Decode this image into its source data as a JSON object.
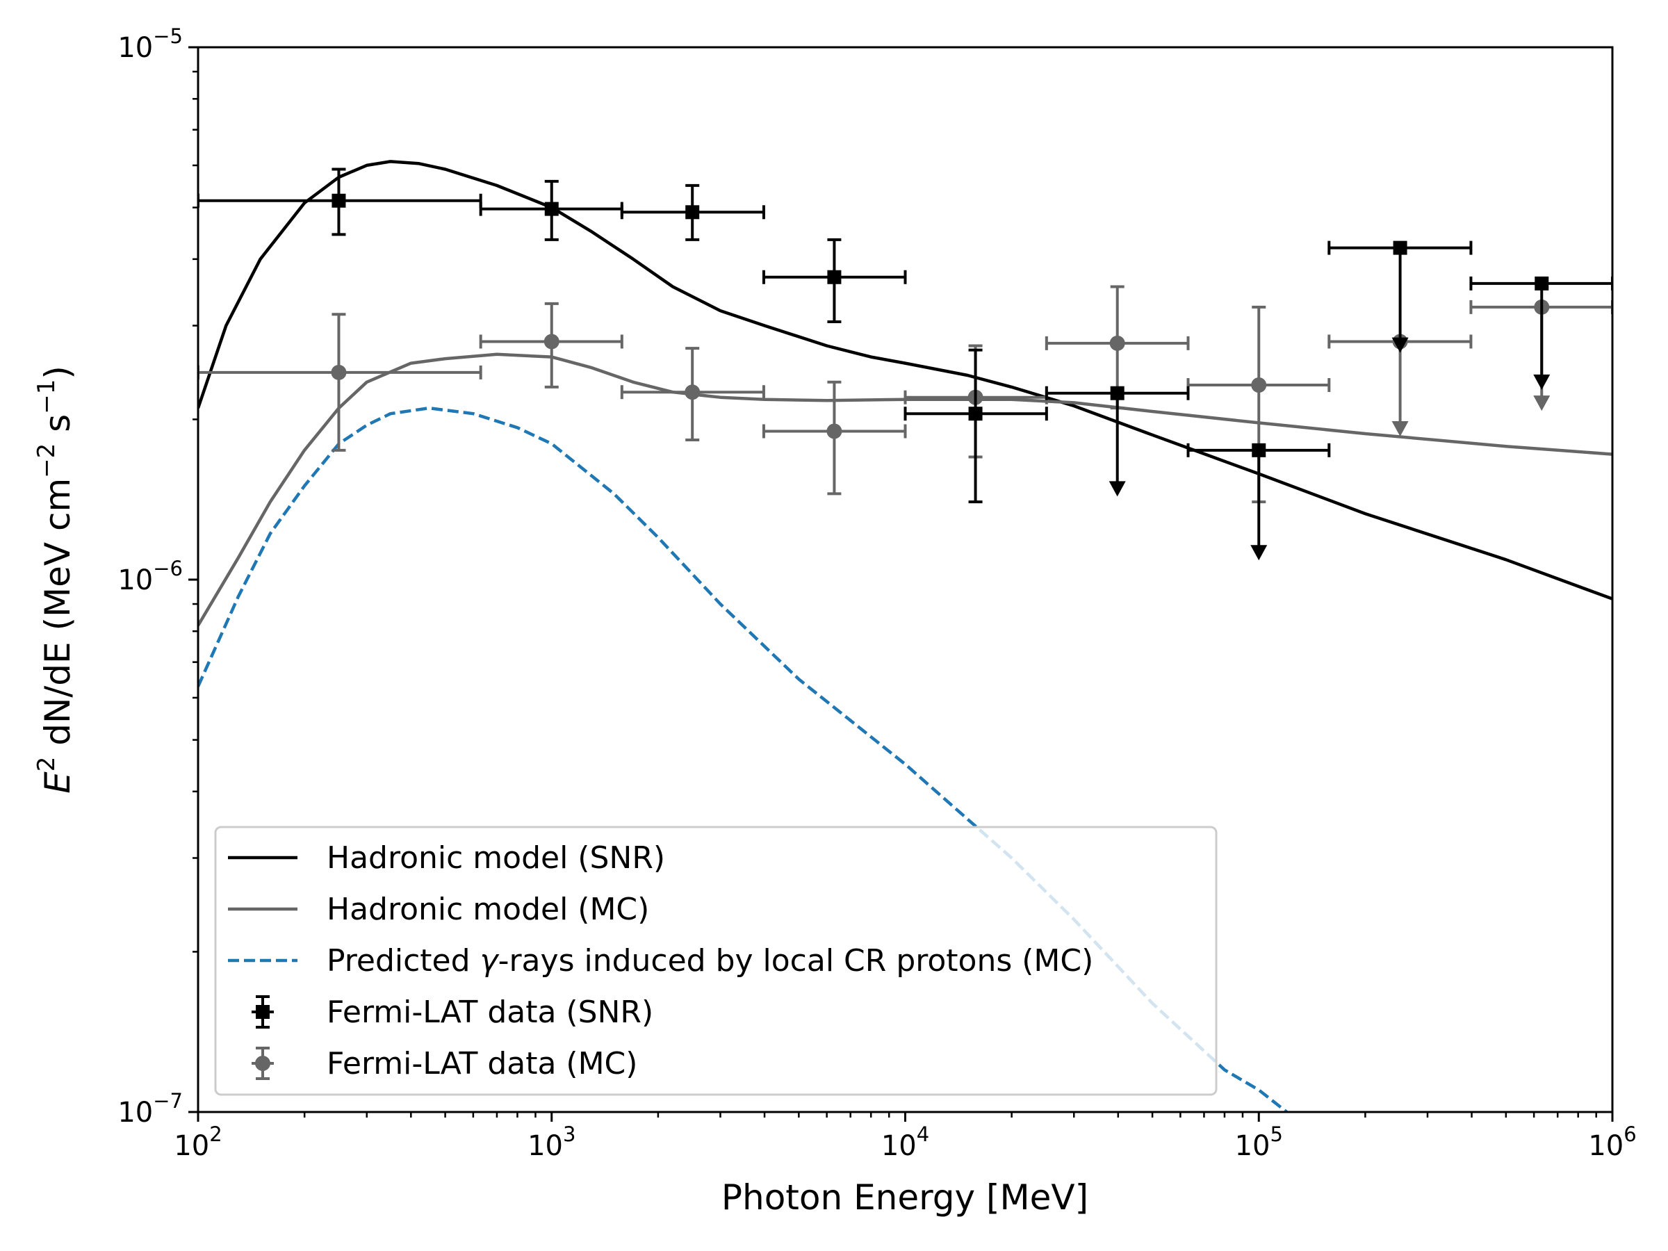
{
  "chart_data": {
    "type": "line",
    "xscale": "log",
    "yscale": "log",
    "xlim": [
      100,
      1000000
    ],
    "ylim": [
      1e-07,
      1e-05
    ],
    "xlabel": "Photon Energy [MeV]",
    "ylabel": {
      "base": "E",
      "base_sup": "2",
      "mid": " dN/dE (MeV cm",
      "sup1": "−2",
      "mid2": " s",
      "sup2": "−1",
      "end": ")"
    },
    "xticks": [
      {
        "value": 100,
        "base": "10",
        "exp": "2"
      },
      {
        "value": 1000,
        "base": "10",
        "exp": "3"
      },
      {
        "value": 10000,
        "base": "10",
        "exp": "4"
      },
      {
        "value": 100000,
        "base": "10",
        "exp": "5"
      },
      {
        "value": 1000000,
        "base": "10",
        "exp": "6"
      }
    ],
    "yticks": [
      {
        "value": 1e-07,
        "base": "10",
        "exp": "−7"
      },
      {
        "value": 1e-06,
        "base": "10",
        "exp": "−6"
      },
      {
        "value": 1e-05,
        "base": "10",
        "exp": "−5"
      }
    ],
    "series": [
      {
        "name": "Hadronic model (SNR)",
        "color": "#000000",
        "style": "solid",
        "x": [
          100,
          120,
          150,
          200,
          250,
          300,
          350,
          420,
          500,
          700,
          1000,
          1300,
          1700,
          2200,
          3000,
          4000,
          6000,
          8000,
          10000,
          15000,
          20000,
          30000,
          50000,
          100000,
          200000,
          500000,
          1000000
        ],
        "y": [
          2.1e-06,
          3e-06,
          4e-06,
          5.1e-06,
          5.7e-06,
          6e-06,
          6.1e-06,
          6.05e-06,
          5.9e-06,
          5.5e-06,
          5e-06,
          4.5e-06,
          4e-06,
          3.55e-06,
          3.2e-06,
          3e-06,
          2.75e-06,
          2.62e-06,
          2.55e-06,
          2.42e-06,
          2.3e-06,
          2.12e-06,
          1.87e-06,
          1.58e-06,
          1.33e-06,
          1.09e-06,
          9.2e-07
        ]
      },
      {
        "name": "Hadronic model (MC)",
        "color": "#666666",
        "style": "solid",
        "x": [
          100,
          130,
          160,
          200,
          250,
          300,
          400,
          500,
          700,
          1000,
          1300,
          1700,
          2200,
          3000,
          4000,
          6000,
          10000,
          20000,
          30000,
          50000,
          100000,
          200000,
          500000,
          1000000
        ],
        "y": [
          8.2e-07,
          1.1e-06,
          1.4e-06,
          1.75e-06,
          2.1e-06,
          2.35e-06,
          2.55e-06,
          2.6e-06,
          2.65e-06,
          2.62e-06,
          2.5e-06,
          2.35e-06,
          2.25e-06,
          2.2e-06,
          2.18e-06,
          2.17e-06,
          2.18e-06,
          2.18e-06,
          2.15e-06,
          2.07e-06,
          1.97e-06,
          1.88e-06,
          1.78e-06,
          1.72e-06
        ]
      },
      {
        "name": "Predicted γ-rays induced by local CR protons (MC)",
        "color": "#1f77b4",
        "style": "dashed",
        "x": [
          100,
          130,
          160,
          200,
          250,
          300,
          350,
          450,
          600,
          800,
          1000,
          1500,
          2000,
          3000,
          5000,
          10000,
          20000,
          30000,
          50000,
          80000,
          100000,
          120000
        ],
        "y": [
          6.3e-07,
          9.3e-07,
          1.22e-06,
          1.5e-06,
          1.8e-06,
          1.95e-06,
          2.05e-06,
          2.1e-06,
          2.05e-06,
          1.93e-06,
          1.8e-06,
          1.45e-06,
          1.2e-06,
          9e-07,
          6.5e-07,
          4.5e-07,
          3e-07,
          2.3e-07,
          1.6e-07,
          1.2e-07,
          1.1e-07,
          1e-07
        ]
      }
    ],
    "fermi_snr": {
      "name": "Fermi-LAT data (SNR)",
      "color": "#000000",
      "marker": "square",
      "points": [
        {
          "x": 250,
          "xlo": 100,
          "xhi": 630,
          "y": 5.15e-06,
          "ylo": 4.45e-06,
          "yhi": 5.9e-06,
          "ul": false
        },
        {
          "x": 1000,
          "xlo": 630,
          "xhi": 1580,
          "y": 4.97e-06,
          "ylo": 4.35e-06,
          "yhi": 5.6e-06,
          "ul": false
        },
        {
          "x": 2500,
          "xlo": 1580,
          "xhi": 3980,
          "y": 4.9e-06,
          "ylo": 4.35e-06,
          "yhi": 5.5e-06,
          "ul": false
        },
        {
          "x": 6300,
          "xlo": 3980,
          "xhi": 10000,
          "y": 3.7e-06,
          "ylo": 3.05e-06,
          "yhi": 4.35e-06,
          "ul": false
        },
        {
          "x": 15800,
          "xlo": 10000,
          "xhi": 25100,
          "y": 2.05e-06,
          "ylo": 1.4e-06,
          "yhi": 2.7e-06,
          "ul": false
        },
        {
          "x": 39800,
          "xlo": 25100,
          "xhi": 63100,
          "y": 2.24e-06,
          "ylo": 1.45e-06,
          "yhi": 2.24e-06,
          "ul": true
        },
        {
          "x": 100000,
          "xlo": 63100,
          "xhi": 158000,
          "y": 1.75e-06,
          "ylo": 1.1e-06,
          "yhi": 1.75e-06,
          "ul": true
        },
        {
          "x": 251000,
          "xlo": 158000,
          "xhi": 398000,
          "y": 4.2e-06,
          "ylo": 2.7e-06,
          "yhi": 4.2e-06,
          "ul": true
        },
        {
          "x": 631000,
          "xlo": 398000,
          "xhi": 1000000,
          "y": 3.6e-06,
          "ylo": 2.3e-06,
          "yhi": 3.6e-06,
          "ul": true
        }
      ]
    },
    "fermi_mc": {
      "name": "Fermi-LAT data (MC)",
      "color": "#666666",
      "marker": "circle",
      "points": [
        {
          "x": 250,
          "xlo": 100,
          "xhi": 630,
          "y": 2.45e-06,
          "ylo": 1.75e-06,
          "yhi": 3.15e-06,
          "ul": false
        },
        {
          "x": 1000,
          "xlo": 630,
          "xhi": 1580,
          "y": 2.8e-06,
          "ylo": 2.3e-06,
          "yhi": 3.3e-06,
          "ul": false
        },
        {
          "x": 2500,
          "xlo": 1580,
          "xhi": 3980,
          "y": 2.25e-06,
          "ylo": 1.83e-06,
          "yhi": 2.72e-06,
          "ul": false
        },
        {
          "x": 6300,
          "xlo": 3980,
          "xhi": 10000,
          "y": 1.9e-06,
          "ylo": 1.45e-06,
          "yhi": 2.35e-06,
          "ul": false
        },
        {
          "x": 15800,
          "xlo": 10000,
          "xhi": 25100,
          "y": 2.2e-06,
          "ylo": 1.7e-06,
          "yhi": 2.75e-06,
          "ul": false
        },
        {
          "x": 39800,
          "xlo": 25100,
          "xhi": 63100,
          "y": 2.78e-06,
          "ylo": 2.1e-06,
          "yhi": 3.55e-06,
          "ul": false
        },
        {
          "x": 100000,
          "xlo": 63100,
          "xhi": 158000,
          "y": 2.32e-06,
          "ylo": 1.4e-06,
          "yhi": 3.25e-06,
          "ul": false
        },
        {
          "x": 251000,
          "xlo": 158000,
          "xhi": 398000,
          "y": 2.8e-06,
          "ylo": 1.88e-06,
          "yhi": 2.8e-06,
          "ul": true
        },
        {
          "x": 631000,
          "xlo": 398000,
          "xhi": 1000000,
          "y": 3.25e-06,
          "ylo": 2.1e-06,
          "yhi": 3.25e-06,
          "ul": true
        }
      ]
    },
    "legend": {
      "position": "lower-left",
      "entries": [
        {
          "label": "Hadronic model (SNR)",
          "kind": "line",
          "color": "#000000"
        },
        {
          "label": "Hadronic model (MC)",
          "kind": "line",
          "color": "#666666"
        },
        {
          "label_pre": "Predicted ",
          "label_sym": "γ",
          "label_post": "-rays induced by local CR protons (MC)",
          "kind": "dashed",
          "color": "#1f77b4"
        },
        {
          "label": "Fermi-LAT data (SNR)",
          "kind": "errsquare",
          "color": "#000000"
        },
        {
          "label": "Fermi-LAT data (MC)",
          "kind": "errcircle",
          "color": "#666666"
        }
      ]
    }
  }
}
